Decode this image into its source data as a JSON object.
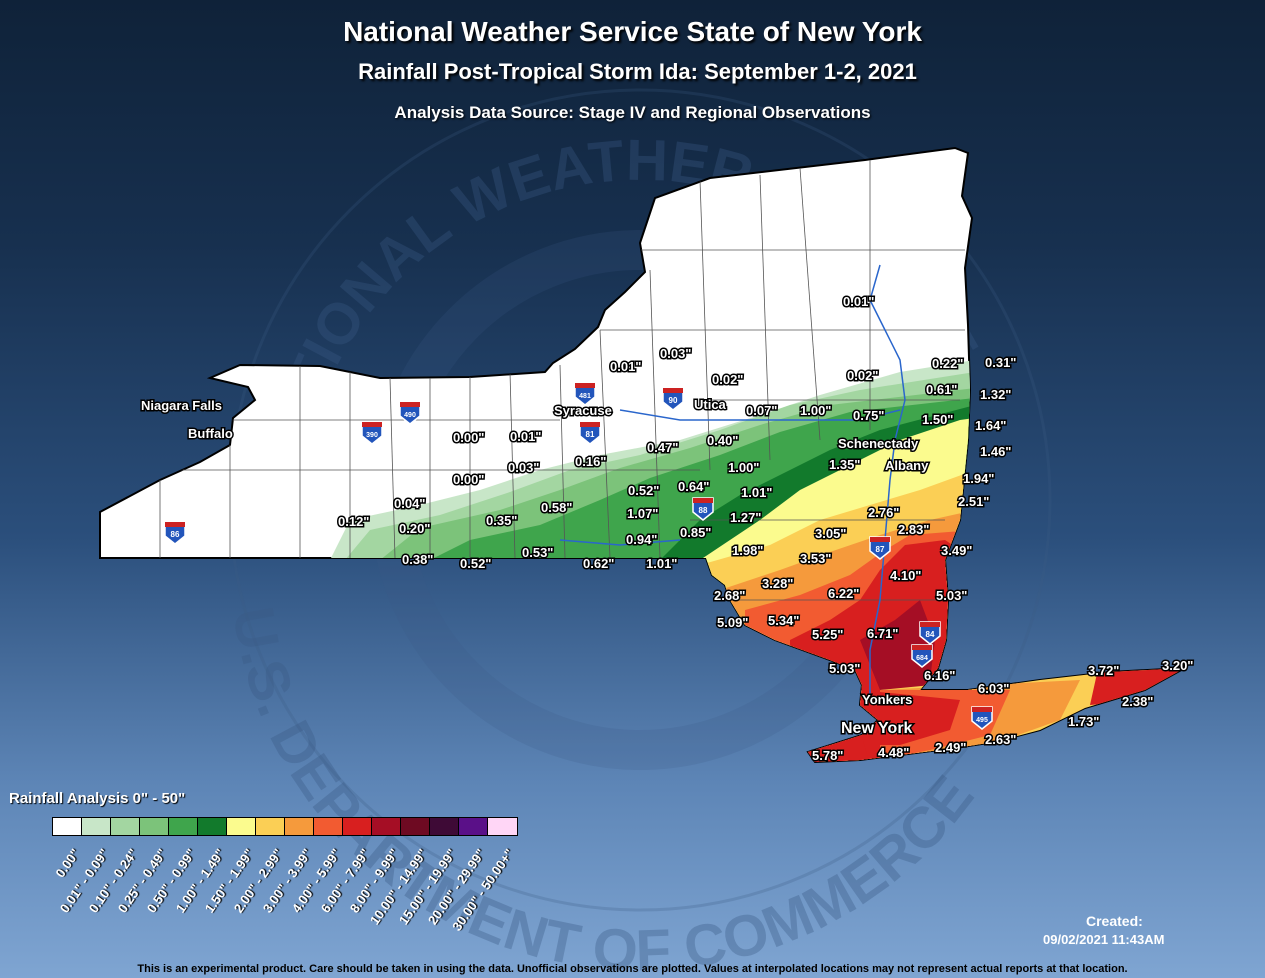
{
  "title": "National Weather Service State of New York",
  "subtitle": "Rainfall Post-Tropical Storm Ida: September 1-2, 2021",
  "source": "Analysis Data Source: Stage IV and Regional Observations",
  "watermark": {
    "top": "NATIONAL WEATHER SERVICE",
    "bottom": "U.S. DEPARTMENT OF COMMERCE"
  },
  "legend": {
    "title": "Rainfall Analysis 0\" - 50\"",
    "bins": [
      {
        "label": "0.00\"",
        "color": "#ffffff"
      },
      {
        "label": "0.01\" - 0.09\"",
        "color": "#c8e6c8"
      },
      {
        "label": "0.10\" - 0.24\"",
        "color": "#a3d6a1"
      },
      {
        "label": "0.25\" - 0.49\"",
        "color": "#7cc37a"
      },
      {
        "label": "0.50\" - 0.99\"",
        "color": "#3fa54c"
      },
      {
        "label": "1.00\" - 1.49\"",
        "color": "#127a2c"
      },
      {
        "label": "1.50\" - 1.99\"",
        "color": "#fbfb8e"
      },
      {
        "label": "2.00\" - 2.99\"",
        "color": "#fbcf55"
      },
      {
        "label": "3.00\" - 3.99\"",
        "color": "#f59a3c"
      },
      {
        "label": "4.00\" - 5.99\"",
        "color": "#f25b31"
      },
      {
        "label": "6.00\" - 7.99\"",
        "color": "#d81f1f"
      },
      {
        "label": "8.00\" - 9.99\"",
        "color": "#a50e25"
      },
      {
        "label": "10.00\" - 14.99\"",
        "color": "#6e0a22"
      },
      {
        "label": "15.00\" - 19.99\"",
        "color": "#3e0a36"
      },
      {
        "label": "20.00\" - 29.99\"",
        "color": "#5a1088"
      },
      {
        "label": "30.00\" - 50.00+\"",
        "color": "#ffd6f6"
      }
    ]
  },
  "cities": {
    "niagara_falls": "Niagara Falls",
    "buffalo": "Buffalo",
    "syracuse": "Syracuse",
    "utica": "Utica",
    "schenectady": "Schenectady",
    "albany": "Albany",
    "yonkers": "Yonkers",
    "new_york": "New York"
  },
  "interstates": [
    "86",
    "390",
    "490",
    "481",
    "81",
    "90",
    "88",
    "87",
    "84",
    "684",
    "495"
  ],
  "observations": [
    "0.01\"",
    "0.03\"",
    "0.01\"",
    "0.02\"",
    "0.02\"",
    "0.22\"",
    "0.31\"",
    "0.61\"",
    "1.32\"",
    "0.07\"",
    "1.00\"",
    "0.75\"",
    "1.50\"",
    "1.64\"",
    "1.46\"",
    "0.00\"",
    "0.01\"",
    "0.47\"",
    "0.40\"",
    "0.16\"",
    "1.35\"",
    "1.94\"",
    "0.00\"",
    "0.03\"",
    "1.00\"",
    "0.52\"",
    "0.64\"",
    "1.01\"",
    "2.51\"",
    "0.04\"",
    "0.12\"",
    "0.20\"",
    "0.35\"",
    "0.58\"",
    "1.07\"",
    "1.27\"",
    "2.76\"",
    "2.83\"",
    "0.85\"",
    "3.05\"",
    "0.94\"",
    "3.49\"",
    "0.38\"",
    "0.52\"",
    "0.53\"",
    "0.62\"",
    "1.01\"",
    "1.98\"",
    "3.53\"",
    "4.10\"",
    "3.28\"",
    "6.22\"",
    "5.03\"",
    "2.68\"",
    "5.09\"",
    "5.34\"",
    "5.25\"",
    "6.71\"",
    "5.03\"",
    "6.16\"",
    "6.03\"",
    "3.72\"",
    "3.20\"",
    "2.38\"",
    "1.73\"",
    "4.48\"",
    "2.49\"",
    "2.63\"",
    "5.78\""
  ],
  "created_label": "Created:",
  "created_date": "09/02/2021 11:43AM",
  "disclaimer": "This is an experimental product. Care should be taken in using the data. Unofficial observations are plotted. Values at interpolated locations may not represent actual reports at that location."
}
